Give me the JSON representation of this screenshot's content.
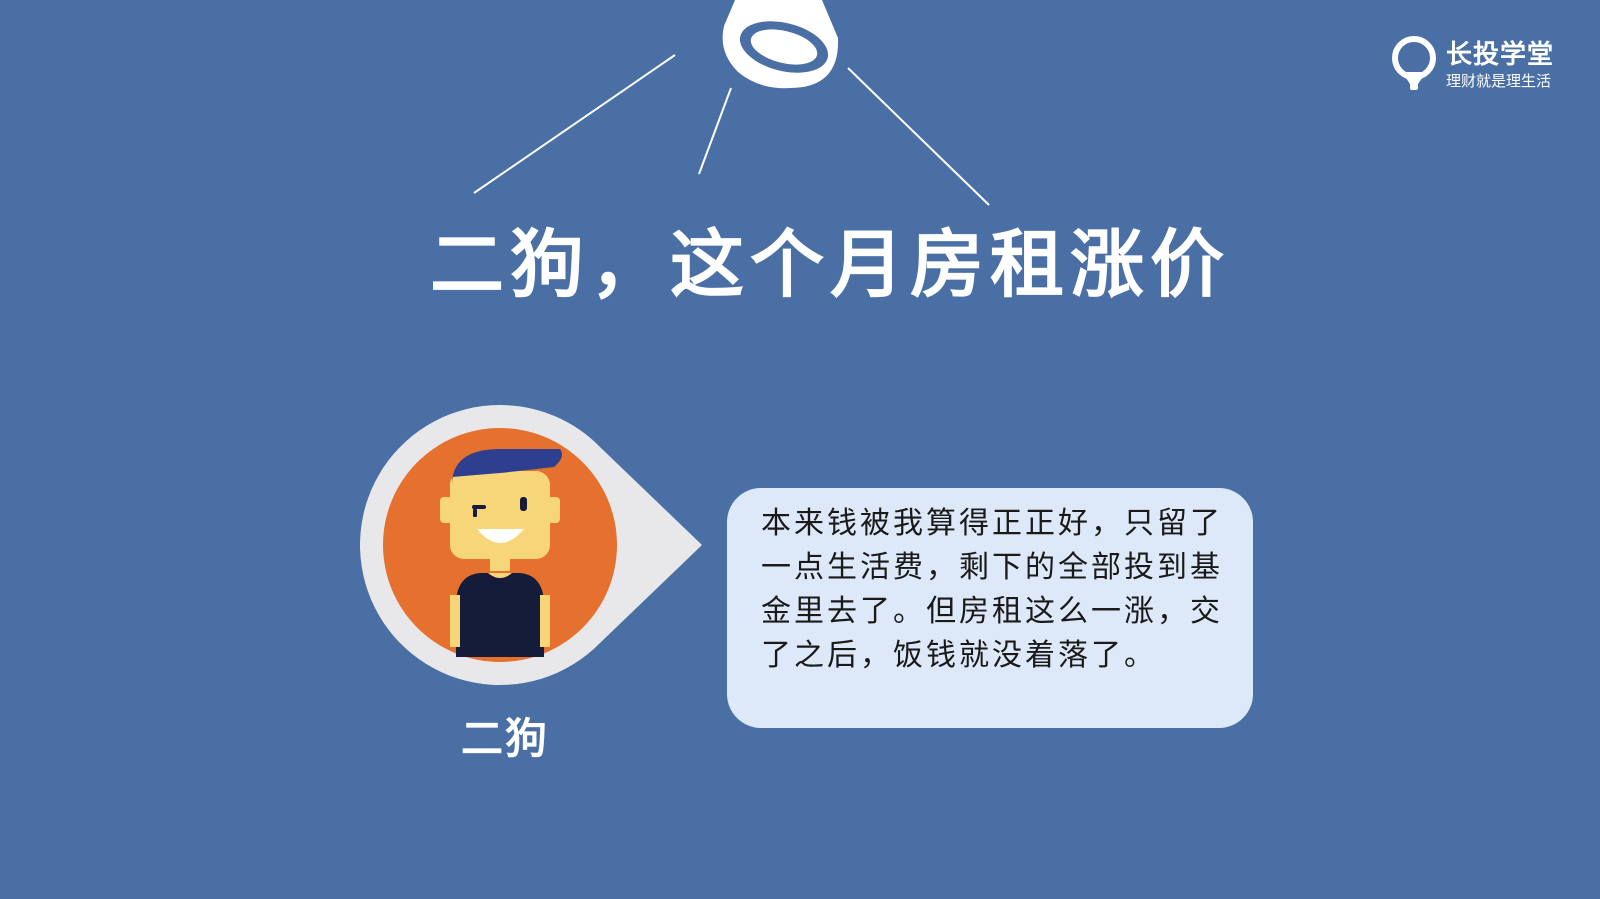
{
  "brand": {
    "name": "长投学堂",
    "slogan": "理财就是理生活"
  },
  "headline": "二狗，这个月房租涨价",
  "character": {
    "name": "二狗"
  },
  "speech": {
    "text": "本来钱被我算得正正好，只留了一点生活费，剩下的全部投到基金里去了。但房租这么一涨，交了之后，饭钱就没着落了。"
  },
  "colors": {
    "background": "#4a6fa5",
    "avatar_ring": "#e8e8ea",
    "avatar_circle": "#e6702e",
    "speech_bubble": "#dde9f8",
    "hat": "#2e3f8f",
    "skin": "#f7d67a",
    "shirt": "#141c3a"
  },
  "icons": {
    "spotlight": "spotlight-lamp-icon",
    "brand_logo": "lightbulb-pin-icon"
  }
}
